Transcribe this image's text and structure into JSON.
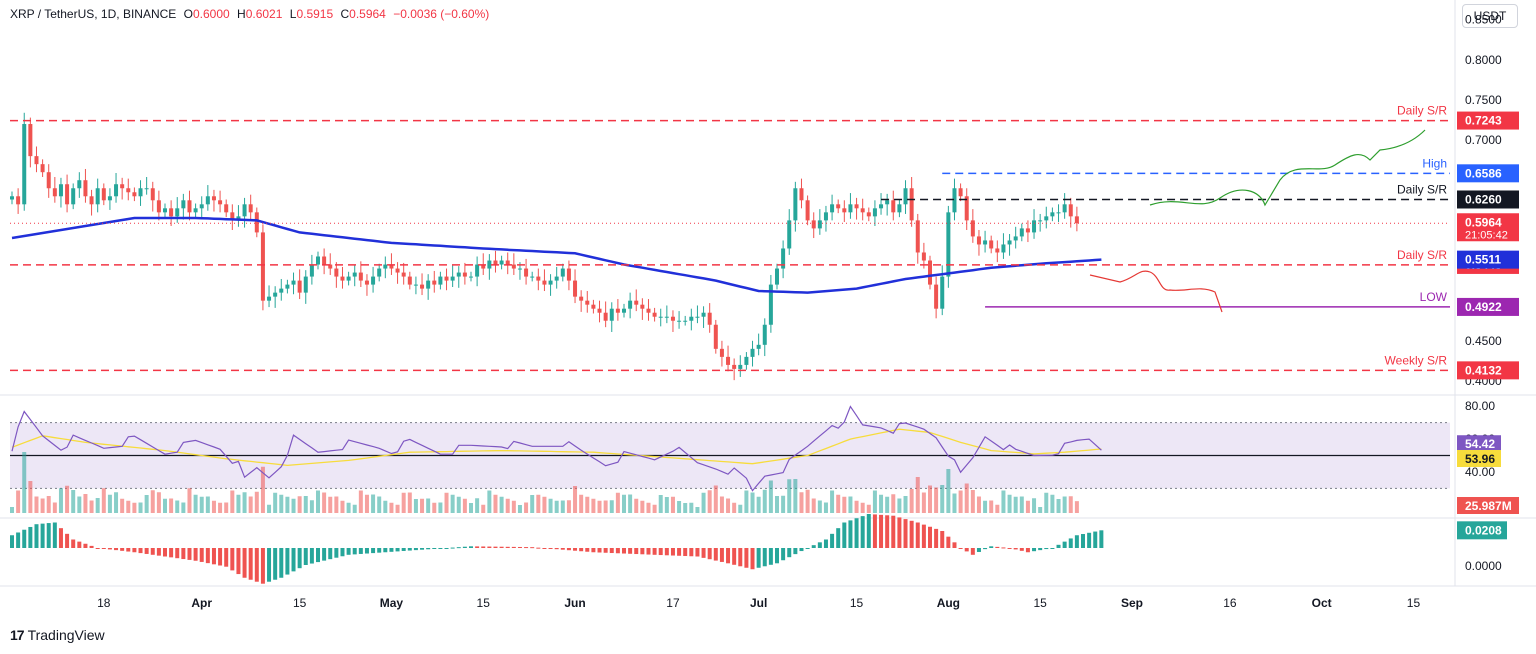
{
  "header": {
    "symbol": "XRP / TetherUS, 1D, BINANCE",
    "o_label": "O",
    "o_value": "0.6000",
    "h_label": "H",
    "h_value": "0.6021",
    "l_label": "L",
    "l_value": "0.5915",
    "c_label": "C",
    "c_value": "0.5964",
    "change": "−0.0036 (−0.60%)",
    "currency_button": "USDT"
  },
  "footer": {
    "brand": "TradingView",
    "logo_icon": "tradingview-logo-icon"
  },
  "colors": {
    "up": "#26a69a",
    "down": "#ef5350",
    "sr": "#f23645",
    "ma": "#2130d9",
    "high": "#2962ff",
    "low": "#9c27b0",
    "rsi": "#7e57c2",
    "rsi_ma": "#f7dc3c",
    "band": "#ede7f6"
  },
  "chart_data": [
    {
      "type": "candlestick",
      "price_axis_ticks": [
        "0.8500",
        "0.8000",
        "0.7500",
        "0.7000",
        "0.4500",
        "0.4000"
      ],
      "ylim": [
        0.385,
        0.862
      ],
      "x_tick_labels": [
        "18",
        "Apr",
        "15",
        "May",
        "15",
        "Jun",
        "17",
        "Jul",
        "15",
        "Aug",
        "15",
        "Sep",
        "16",
        "Oct",
        "15"
      ],
      "x_tick_positions": [
        15,
        31,
        47,
        62,
        77,
        92,
        108,
        122,
        138,
        153,
        168,
        183,
        199,
        214,
        229
      ],
      "last_index": 178,
      "ohlc_series_close": [
        0.63,
        0.62,
        0.72,
        0.68,
        0.67,
        0.66,
        0.64,
        0.63,
        0.645,
        0.62,
        0.64,
        0.65,
        0.63,
        0.62,
        0.64,
        0.625,
        0.63,
        0.645,
        0.64,
        0.635,
        0.63,
        0.64,
        0.64,
        0.625,
        0.61,
        0.615,
        0.605,
        0.615,
        0.625,
        0.61,
        0.615,
        0.62,
        0.63,
        0.625,
        0.62,
        0.61,
        0.6,
        0.605,
        0.62,
        0.61,
        0.585,
        0.5,
        0.505,
        0.51,
        0.515,
        0.52,
        0.525,
        0.51,
        0.53,
        0.545,
        0.555,
        0.545,
        0.54,
        0.53,
        0.525,
        0.53,
        0.535,
        0.525,
        0.52,
        0.53,
        0.54,
        0.545,
        0.54,
        0.535,
        0.53,
        0.52,
        0.52,
        0.515,
        0.525,
        0.52,
        0.53,
        0.525,
        0.53,
        0.535,
        0.53,
        0.53,
        0.545,
        0.54,
        0.55,
        0.545,
        0.55,
        0.545,
        0.54,
        0.54,
        0.53,
        0.53,
        0.525,
        0.52,
        0.525,
        0.53,
        0.54,
        0.525,
        0.505,
        0.5,
        0.495,
        0.49,
        0.485,
        0.475,
        0.49,
        0.485,
        0.49,
        0.5,
        0.495,
        0.49,
        0.485,
        0.48,
        0.48,
        0.48,
        0.475,
        0.475,
        0.475,
        0.48,
        0.48,
        0.485,
        0.47,
        0.44,
        0.43,
        0.42,
        0.415,
        0.42,
        0.43,
        0.44,
        0.445,
        0.47,
        0.52,
        0.54,
        0.565,
        0.6,
        0.64,
        0.625,
        0.6,
        0.59,
        0.6,
        0.61,
        0.62,
        0.615,
        0.61,
        0.62,
        0.615,
        0.61,
        0.605,
        0.615,
        0.62,
        0.625,
        0.61,
        0.62,
        0.64,
        0.6,
        0.56,
        0.55,
        0.52,
        0.49,
        0.53,
        0.61,
        0.64,
        0.63,
        0.6,
        0.58,
        0.57,
        0.575,
        0.565,
        0.56,
        0.57,
        0.575,
        0.58,
        0.59,
        0.585,
        0.6,
        0.6,
        0.605,
        0.61,
        0.61,
        0.62,
        0.605,
        0.5964
      ],
      "series": [
        {
          "name": "",
          "kind": "sma",
          "values_at": [
            [
              0,
              0.578
            ],
            [
              20,
              0.603
            ],
            [
              30,
              0.603
            ],
            [
              40,
              0.6
            ],
            [
              47,
              0.585
            ],
            [
              62,
              0.572
            ],
            [
              77,
              0.565
            ],
            [
              92,
              0.559
            ],
            [
              100,
              0.545
            ],
            [
              115,
              0.525
            ],
            [
              122,
              0.512
            ],
            [
              130,
              0.51
            ],
            [
              138,
              0.515
            ],
            [
              146,
              0.527
            ],
            [
              153,
              0.534
            ],
            [
              160,
              0.541
            ],
            [
              168,
              0.546
            ],
            [
              178,
              0.5511
            ]
          ]
        }
      ],
      "levels": [
        {
          "label": "Daily S/R",
          "value": 0.7243,
          "value_label": "0.7243",
          "style": "dashed",
          "color": "#f23645"
        },
        {
          "label": "High",
          "value": 0.6586,
          "value_label": "0.6586",
          "style": "dashed",
          "color": "#2962ff"
        },
        {
          "label": "Daily S/R",
          "value": 0.626,
          "value_label": "0.6260",
          "style": "dashed",
          "color": "#131722"
        },
        {
          "label": "Daily S/R",
          "value": 0.5445,
          "value_label": "0.5445",
          "style": "dashed",
          "color": "#f23645"
        },
        {
          "label": "LOW",
          "value": 0.4922,
          "value_label": "0.4922",
          "style": "solid",
          "color": "#9c27b0"
        },
        {
          "label": "Weekly S/R",
          "value": 0.4132,
          "value_label": "0.4132",
          "style": "dashed",
          "color": "#f23645"
        }
      ],
      "price_badges": [
        {
          "value": 0.5964,
          "text": "0.5964",
          "subtext": "21:05:42",
          "color": "#f23645"
        },
        {
          "value": 0.5511,
          "text": "0.5511",
          "color": "#2130d9"
        }
      ]
    },
    {
      "type": "rsi",
      "axis_ticks": [
        "80.00",
        "60.00",
        "40.00"
      ],
      "ylim": [
        15,
        85
      ],
      "band": [
        30,
        70
      ],
      "midline": 50,
      "values_at": [
        [
          0,
          55
        ],
        [
          2,
          75
        ],
        [
          5,
          62
        ],
        [
          8,
          55
        ],
        [
          10,
          60
        ],
        [
          15,
          55
        ],
        [
          20,
          60
        ],
        [
          25,
          52
        ],
        [
          30,
          58
        ],
        [
          34,
          55
        ],
        [
          37,
          44
        ],
        [
          38,
          35
        ],
        [
          40,
          42
        ],
        [
          42,
          37
        ],
        [
          44,
          45
        ],
        [
          46,
          60
        ],
        [
          50,
          52
        ],
        [
          55,
          57
        ],
        [
          60,
          55
        ],
        [
          62,
          53
        ],
        [
          65,
          58
        ],
        [
          70,
          52
        ],
        [
          75,
          55
        ],
        [
          80,
          57
        ],
        [
          85,
          55
        ],
        [
          90,
          58
        ],
        [
          93,
          52
        ],
        [
          97,
          45
        ],
        [
          100,
          50
        ],
        [
          105,
          48
        ],
        [
          108,
          55
        ],
        [
          112,
          45
        ],
        [
          115,
          43
        ],
        [
          118,
          40
        ],
        [
          120,
          35
        ],
        [
          121,
          28
        ],
        [
          123,
          38
        ],
        [
          126,
          42
        ],
        [
          130,
          55
        ],
        [
          134,
          70
        ],
        [
          136,
          68
        ],
        [
          137,
          78
        ],
        [
          139,
          68
        ],
        [
          142,
          68
        ],
        [
          144,
          66
        ],
        [
          146,
          68
        ],
        [
          149,
          66
        ],
        [
          151,
          62
        ],
        [
          153,
          52
        ],
        [
          155,
          38
        ],
        [
          157,
          48
        ],
        [
          159,
          62
        ],
        [
          161,
          58
        ],
        [
          164,
          52
        ],
        [
          167,
          50
        ],
        [
          170,
          52
        ],
        [
          172,
          55
        ],
        [
          174,
          58
        ],
        [
          176,
          60
        ],
        [
          178,
          54.42
        ]
      ],
      "ma_values_at": [
        [
          0,
          55
        ],
        [
          5,
          62
        ],
        [
          12,
          58
        ],
        [
          25,
          53
        ],
        [
          35,
          48
        ],
        [
          45,
          44
        ],
        [
          55,
          47
        ],
        [
          65,
          52
        ],
        [
          80,
          53
        ],
        [
          95,
          52
        ],
        [
          110,
          48
        ],
        [
          121,
          45
        ],
        [
          130,
          50
        ],
        [
          137,
          60
        ],
        [
          145,
          66
        ],
        [
          150,
          64
        ],
        [
          155,
          58
        ],
        [
          160,
          53
        ],
        [
          167,
          51
        ],
        [
          172,
          52
        ],
        [
          178,
          53.96
        ]
      ],
      "value_badges": [
        {
          "value": 54.42,
          "text": "54.42",
          "color": "#7e57c2"
        },
        {
          "value": 53.96,
          "text": "53.96",
          "color": "#f7dc3c"
        }
      ],
      "volume_badge": "25.987M"
    },
    {
      "type": "histogram",
      "axis_ticks": [
        "0.0000"
      ],
      "last_value": 0.0208,
      "value_label": "0.0208",
      "values_at": [
        [
          0,
          0.015
        ],
        [
          4,
          0.028
        ],
        [
          7,
          0.03
        ],
        [
          10,
          0.01
        ],
        [
          14,
          0.0
        ],
        [
          20,
          -0.005
        ],
        [
          30,
          -0.015
        ],
        [
          35,
          -0.022
        ],
        [
          38,
          -0.035
        ],
        [
          41,
          -0.042
        ],
        [
          44,
          -0.035
        ],
        [
          48,
          -0.02
        ],
        [
          55,
          -0.008
        ],
        [
          65,
          -0.003
        ],
        [
          75,
          0.002
        ],
        [
          85,
          0.001
        ],
        [
          95,
          -0.005
        ],
        [
          105,
          -0.008
        ],
        [
          112,
          -0.01
        ],
        [
          117,
          -0.018
        ],
        [
          121,
          -0.025
        ],
        [
          125,
          -0.018
        ],
        [
          130,
          0.0
        ],
        [
          133,
          0.01
        ],
        [
          136,
          0.03
        ],
        [
          140,
          0.04
        ],
        [
          144,
          0.038
        ],
        [
          148,
          0.03
        ],
        [
          152,
          0.02
        ],
        [
          155,
          0.0
        ],
        [
          157,
          -0.008
        ],
        [
          160,
          0.002
        ],
        [
          163,
          0.0
        ],
        [
          166,
          -0.005
        ],
        [
          170,
          0.0
        ],
        [
          174,
          0.015
        ],
        [
          178,
          0.0208
        ]
      ]
    }
  ]
}
